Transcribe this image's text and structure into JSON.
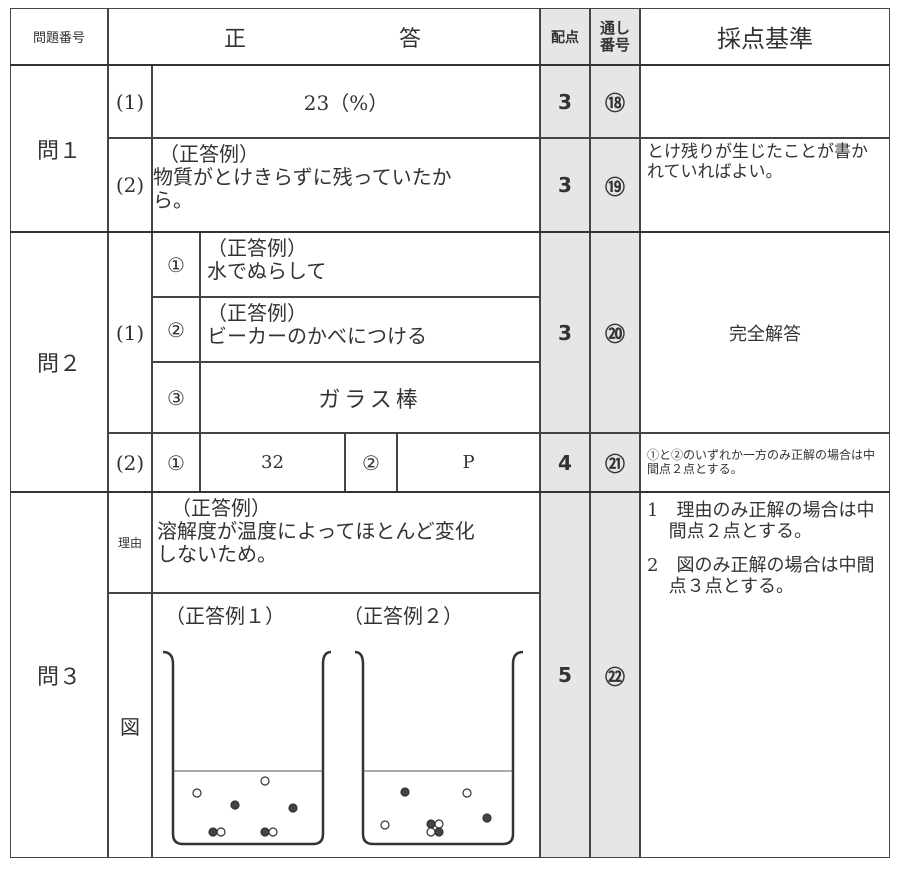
{
  "header": {
    "question_no": "問題番号",
    "answer": [
      "正",
      "答"
    ],
    "points": "配点",
    "serial": "通し番号",
    "criteria": "採点基準"
  },
  "q1": {
    "label": "問１",
    "rows": [
      {
        "sub": "(1)",
        "answer": "23（%）",
        "points": 3,
        "serial": "⑱"
      },
      {
        "sub": "(2)",
        "example": "（正答例）",
        "answer": "物質がとけきらずに残っていたから。",
        "points": 3,
        "serial": "⑲",
        "criteria": "とけ残りが生じたことが書かれていればよい。"
      }
    ]
  },
  "q2": {
    "label": "問２",
    "part1": {
      "sub": "(1)",
      "items": [
        {
          "no": "①",
          "example": "（正答例）",
          "answer": "水でぬらして"
        },
        {
          "no": "②",
          "example": "（正答例）",
          "answer": "ビーカーのかべにつける"
        },
        {
          "no": "③",
          "answer": "ガラス棒"
        }
      ],
      "points": 3,
      "serial": "⑳",
      "criteria": "完全解答"
    },
    "part2": {
      "sub": "(2)",
      "no1": "①",
      "answer1": 32,
      "no2": "②",
      "answer2": "P",
      "points": 4,
      "serial": "㉑",
      "criteria": "①と②のいずれか一方のみ正解の場合は中間点２点とする。"
    }
  },
  "q3": {
    "label": "問３",
    "reason_label": "理由",
    "reason_example": "（正答例）",
    "reason": "溶解度が温度によってほとんど変化しないため。",
    "figure_label": "図",
    "figure_examples": [
      "（正答例１）",
      "（正答例２）"
    ],
    "points": 5,
    "serial": "㉒",
    "criteria": [
      "1　理由のみ正解の場合は中間点２点とする。",
      "2　図のみ正解の場合は中間点３点とする。"
    ]
  }
}
